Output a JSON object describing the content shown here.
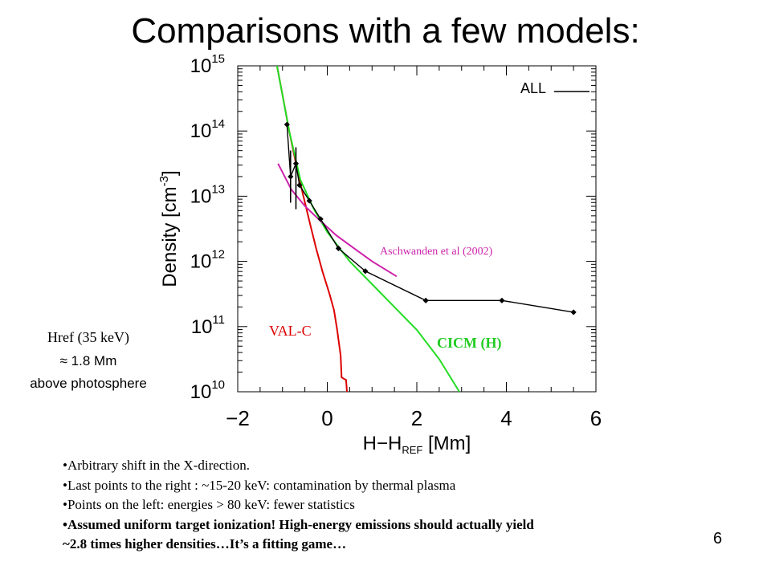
{
  "slide": {
    "title": "Comparisons with a few models:",
    "page_number": "6",
    "href_note": [
      "Href (35 keV)",
      "≈ 1.8 Mm",
      "above photosphere"
    ],
    "bullets": [
      {
        "text": "•Arbitrary shift in the X-direction.",
        "bold": false
      },
      {
        "text": "•Last points to the right : ~15-20 keV: contamination by thermal plasma",
        "bold": false
      },
      {
        "text": "•Points on the left: energies > 80 keV: fewer statistics",
        "bold": false
      },
      {
        "text": "•Assumed uniform target ionization! High-energy emissions should actually yield",
        "bold": true
      },
      {
        "text": "~2.8 times higher densities…It’s a fitting game…",
        "bold": true
      }
    ]
  },
  "chart_data": {
    "type": "line",
    "title": "",
    "xlabel": "H−H_REF [Mm]",
    "ylabel": "Density [cm^-3]",
    "xlim": [
      -2,
      6
    ],
    "ylim_log10": [
      10,
      15
    ],
    "log_y": true,
    "grid": false,
    "x_ticks": [
      -2,
      0,
      2,
      4,
      6
    ],
    "x_tick_labels": [
      "−2",
      "0",
      "2",
      "4",
      "6"
    ],
    "y_ticks_log10": [
      10,
      11,
      12,
      13,
      14,
      15
    ],
    "y_tick_labels": [
      "10",
      "10",
      "10",
      "10",
      "10",
      "10"
    ],
    "y_tick_exponents": [
      "10",
      "11",
      "12",
      "13",
      "14",
      "15"
    ],
    "legend": {
      "label": "ALL",
      "position": "top-right"
    },
    "annotations": {
      "val_c": "VAL-C",
      "cicm": "CICM (H)",
      "aschwanden": "Aschwanden et al (2002)"
    },
    "series": [
      {
        "name": "ALL",
        "color": "#000000",
        "marker": "diamond",
        "points": [
          {
            "x": -0.9,
            "log_y": 14.1
          },
          {
            "x": -0.82,
            "log_y": 13.3
          },
          {
            "x": -0.7,
            "log_y": 13.5
          },
          {
            "x": -0.62,
            "log_y": 13.17
          },
          {
            "x": -0.4,
            "log_y": 12.93
          },
          {
            "x": -0.15,
            "log_y": 12.65
          },
          {
            "x": 0.25,
            "log_y": 12.2
          },
          {
            "x": 0.85,
            "log_y": 11.85
          },
          {
            "x": 2.2,
            "log_y": 11.4
          },
          {
            "x": 3.9,
            "log_y": 11.4
          },
          {
            "x": 5.5,
            "log_y": 11.22
          }
        ],
        "error_bars": [
          {
            "x": -0.82,
            "low": 12.9,
            "high": 13.7
          },
          {
            "x": -0.7,
            "low": 12.8,
            "high": 13.75
          }
        ]
      },
      {
        "name": "VAL-C",
        "color": "#dd0000",
        "points": [
          {
            "x": -1.15,
            "log_y": 15.1
          },
          {
            "x": -1.0,
            "log_y": 14.55
          },
          {
            "x": -0.85,
            "log_y": 14.0
          },
          {
            "x": -0.7,
            "log_y": 13.5
          },
          {
            "x": -0.55,
            "log_y": 13.05
          },
          {
            "x": -0.4,
            "log_y": 12.62
          },
          {
            "x": -0.25,
            "log_y": 12.2
          },
          {
            "x": -0.1,
            "log_y": 11.83
          },
          {
            "x": 0.05,
            "log_y": 11.5
          },
          {
            "x": 0.15,
            "log_y": 11.25
          },
          {
            "x": 0.22,
            "log_y": 10.95
          },
          {
            "x": 0.3,
            "log_y": 10.55
          },
          {
            "x": 0.32,
            "log_y": 10.22
          },
          {
            "x": 0.42,
            "log_y": 10.18
          },
          {
            "x": 0.44,
            "log_y": 10.0
          }
        ]
      },
      {
        "name": "CICM (H)",
        "color": "#22dd22",
        "points": [
          {
            "x": -1.15,
            "log_y": 15.1
          },
          {
            "x": -0.85,
            "log_y": 14.0
          },
          {
            "x": -0.6,
            "log_y": 13.25
          },
          {
            "x": -0.3,
            "log_y": 12.8
          },
          {
            "x": 0.0,
            "log_y": 12.45
          },
          {
            "x": 0.5,
            "log_y": 12.0
          },
          {
            "x": 1.0,
            "log_y": 11.65
          },
          {
            "x": 1.5,
            "log_y": 11.3
          },
          {
            "x": 2.0,
            "log_y": 10.95
          },
          {
            "x": 2.5,
            "log_y": 10.5
          },
          {
            "x": 2.95,
            "log_y": 10.0
          }
        ]
      },
      {
        "name": "Aschwanden et al (2002)",
        "color": "#cc22aa",
        "points": [
          {
            "x": -1.1,
            "log_y": 13.5
          },
          {
            "x": -0.8,
            "log_y": 13.1
          },
          {
            "x": -0.5,
            "log_y": 12.85
          },
          {
            "x": -0.2,
            "log_y": 12.65
          },
          {
            "x": 0.2,
            "log_y": 12.4
          },
          {
            "x": 0.6,
            "log_y": 12.2
          },
          {
            "x": 1.0,
            "log_y": 12.0
          },
          {
            "x": 1.55,
            "log_y": 11.77
          }
        ]
      }
    ]
  }
}
